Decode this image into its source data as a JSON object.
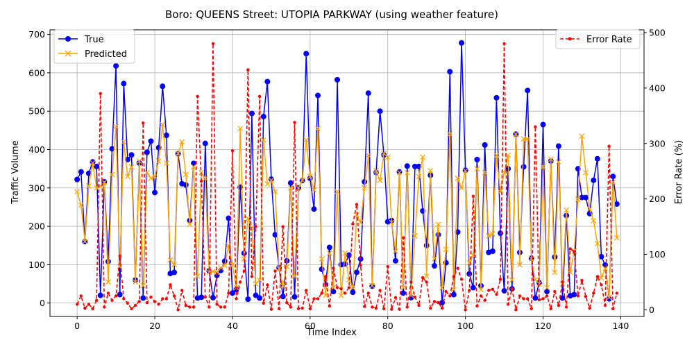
{
  "chart_data": {
    "type": "line",
    "title": "Boro: QUEENS Street: UTOPIA PARKWAY (using weather feature)",
    "xlabel": "Time Index",
    "ylabel": "Traffic Volume",
    "y2label": "Error Rate (%)",
    "xlim": [
      -7,
      146
    ],
    "ylim": [
      -35,
      712
    ],
    "y2lim": [
      -12,
      505
    ],
    "xticks": [
      0,
      20,
      40,
      60,
      80,
      100,
      120,
      140
    ],
    "yticks": [
      0,
      100,
      200,
      300,
      400,
      500,
      600,
      700
    ],
    "y2ticks": [
      0,
      100,
      200,
      300,
      400,
      500
    ],
    "grid": true,
    "legend_left_placement": "upper-left",
    "legend_right_placement": "upper-right",
    "colors": {
      "true": "#0000ff",
      "predicted": "#ffa500",
      "error": "#ff0000"
    },
    "series": [
      {
        "name": "True",
        "axis": "left",
        "marker": "circle",
        "style": "solid",
        "values": [
          322,
          342,
          160,
          338,
          368,
          356,
          20,
          316,
          108,
          402,
          618,
          22,
          572,
          374,
          386,
          60,
          365,
          13,
          393,
          422,
          288,
          405,
          565,
          437,
          77,
          80,
          389,
          311,
          308,
          215,
          364,
          13,
          15,
          416,
          84,
          14,
          72,
          85,
          109,
          221,
          26,
          35,
          302,
          130,
          10,
          494,
          20,
          13,
          486,
          577,
          323,
          178,
          92,
          17,
          110,
          313,
          16,
          300,
          319,
          650,
          325,
          245,
          541,
          88,
          48,
          145,
          30,
          582,
          100,
          102,
          125,
          28,
          80,
          115,
          316,
          547,
          44,
          340,
          500,
          386,
          212,
          215,
          110,
          342,
          26,
          357,
          14,
          356,
          356,
          240,
          150,
          333,
          97,
          178,
          1,
          105,
          603,
          22,
          185,
          678,
          346,
          76,
          40,
          374,
          45,
          412,
          132,
          135,
          535,
          182,
          32,
          350,
          37,
          440,
          132,
          355,
          554,
          117,
          13,
          53,
          465,
          30,
          370,
          120,
          409,
          13,
          228,
          19,
          22,
          350,
          275,
          275,
          233,
          320,
          376,
          121,
          99,
          11,
          330,
          258
        ]
      },
      {
        "name": "Predicted",
        "axis": "left",
        "marker": "x",
        "style": "solid",
        "values": [
          290,
          255,
          160,
          305,
          365,
          300,
          305,
          315,
          55,
          335,
          460,
          95,
          420,
          330,
          355,
          55,
          370,
          45,
          340,
          325,
          330,
          370,
          465,
          365,
          112,
          100,
          390,
          420,
          335,
          205,
          355,
          70,
          340,
          325,
          80,
          82,
          80,
          92,
          98,
          150,
          100,
          40,
          455,
          115,
          220,
          195,
          50,
          60,
          425,
          310,
          320,
          290,
          90,
          45,
          95,
          300,
          70,
          300,
          320,
          425,
          330,
          295,
          455,
          115,
          20,
          130,
          40,
          290,
          20,
          130,
          60,
          40,
          230,
          210,
          300,
          385,
          45,
          345,
          320,
          390,
          380,
          210,
          135,
          340,
          40,
          340,
          20,
          175,
          330,
          380,
          70,
          345,
          115,
          205,
          40,
          140,
          440,
          35,
          325,
          300,
          345,
          105,
          125,
          350,
          35,
          340,
          175,
          180,
          385,
          290,
          340,
          385,
          60,
          440,
          100,
          428,
          428,
          115,
          60,
          50,
          355,
          40,
          375,
          80,
          368,
          50,
          242,
          80,
          135,
          270,
          435,
          340,
          245,
          215,
          155,
          65,
          90,
          15,
          315,
          170
        ]
      },
      {
        "name": "Error Rate",
        "axis": "right",
        "marker": "dot",
        "style": "dashed",
        "values": [
          10,
          25,
          3,
          10,
          2,
          17,
          390,
          5,
          30,
          17,
          25,
          97,
          20,
          12,
          2,
          8,
          15,
          337,
          13,
          23,
          15,
          10,
          20,
          20,
          45,
          25,
          0,
          35,
          8,
          5,
          5,
          385,
          232,
          23,
          5,
          480,
          10,
          5,
          5,
          30,
          287,
          20,
          50,
          70,
          433,
          60,
          150,
          385,
          12,
          45,
          1,
          70,
          2,
          150,
          13,
          5,
          338,
          2,
          3,
          35,
          2,
          20,
          20,
          30,
          60,
          7,
          75,
          40,
          38,
          30,
          40,
          155,
          190,
          80,
          6,
          30,
          5,
          3,
          35,
          2,
          78,
          1,
          22,
          1,
          130,
          5,
          50,
          23,
          8,
          58,
          50,
          3,
          15,
          13,
          3,
          33,
          25,
          60,
          75,
          55,
          0,
          35,
          205,
          7,
          25,
          17,
          35,
          37,
          28,
          55,
          480,
          10,
          38,
          0,
          25,
          20,
          20,
          2,
          330,
          18,
          20,
          25,
          2,
          33,
          8,
          50,
          5,
          110,
          105,
          25,
          53,
          24,
          3,
          30,
          60,
          45,
          8,
          295,
          2,
          30
        ]
      }
    ]
  }
}
